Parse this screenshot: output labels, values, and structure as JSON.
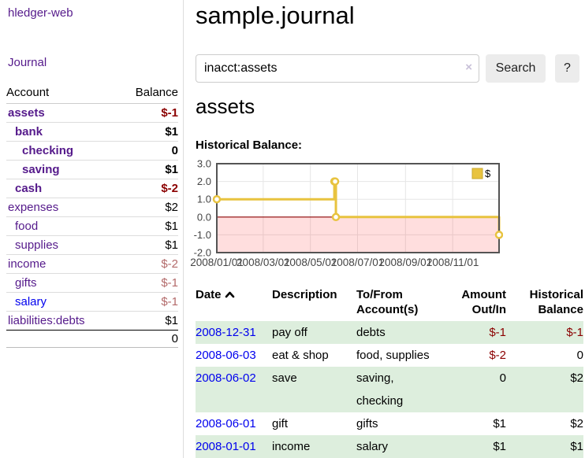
{
  "colors": {
    "link_visited": "#551a8b",
    "link": "#0000ee",
    "negative": "#8b0000",
    "negative_soft": "#b36a6a",
    "highlight_row": "#ddeedd",
    "series_accent": "#e8c33f",
    "series_marker_border": "#c9a82f",
    "zero_line": "#8b0000",
    "negative_region": "rgba(255,0,0,0.13)",
    "grid_line": "#e6e6e6",
    "plot_border": "#545454",
    "axis_text": "#444444",
    "button_bg": "#ececec"
  },
  "app": {
    "title": "hledger-web",
    "nav_journal": "Journal"
  },
  "sidebar": {
    "header": {
      "account": "Account",
      "balance": "Balance"
    },
    "accounts": [
      {
        "name": "assets",
        "depth": 1,
        "bold": true,
        "balance": "$-1",
        "negative": true,
        "link_color": "purple"
      },
      {
        "name": "bank",
        "depth": 2,
        "bold": true,
        "balance": "$1",
        "negative": false,
        "link_color": "purple"
      },
      {
        "name": "checking",
        "depth": 3,
        "bold": true,
        "balance": "0",
        "negative": false,
        "link_color": "purple"
      },
      {
        "name": "saving",
        "depth": 3,
        "bold": true,
        "balance": "$1",
        "negative": false,
        "link_color": "purple"
      },
      {
        "name": "cash",
        "depth": 2,
        "bold": true,
        "balance": "$-2",
        "negative": true,
        "link_color": "purple"
      },
      {
        "name": "expenses",
        "depth": 1,
        "bold": false,
        "balance": "$2",
        "negative": false,
        "link_color": "purple"
      },
      {
        "name": "food",
        "depth": 2,
        "bold": false,
        "balance": "$1",
        "negative": false,
        "link_color": "purple"
      },
      {
        "name": "supplies",
        "depth": 2,
        "bold": false,
        "balance": "$1",
        "negative": false,
        "link_color": "purple"
      },
      {
        "name": "income",
        "depth": 1,
        "bold": false,
        "balance": "$-2",
        "negative": true,
        "link_color": "purple"
      },
      {
        "name": "gifts",
        "depth": 2,
        "bold": false,
        "balance": "$-1",
        "negative": true,
        "link_color": "purple"
      },
      {
        "name": "salary",
        "depth": 2,
        "bold": false,
        "balance": "$-1",
        "negative": true,
        "link_color": "blue"
      },
      {
        "name": "liabilities:debts",
        "depth": 1,
        "bold": false,
        "balance": "$1",
        "negative": false,
        "link_color": "purple"
      }
    ],
    "total": "0"
  },
  "header": {
    "title": "sample.journal"
  },
  "search": {
    "value": "inacct:assets",
    "clear_label": "×",
    "button_label": "Search",
    "help_label": "?"
  },
  "account_page": {
    "heading": "assets",
    "chart_label": "Historical Balance:"
  },
  "chart_data": {
    "type": "line",
    "steps": true,
    "title": "Historical Balance",
    "ylim": [
      -2,
      3
    ],
    "yticks": [
      "3.0",
      "2.0",
      "1.0",
      "0.0",
      "-1.0",
      "-2.0"
    ],
    "xticks": [
      "2008/01/01",
      "2008/03/01",
      "2008/05/01",
      "2008/07/01",
      "2008/09/01",
      "2008/11/01"
    ],
    "xrange": [
      "2008-01-01",
      "2008-12-31"
    ],
    "legend": {
      "label": "$",
      "position": "top-right"
    },
    "series": [
      {
        "name": "$",
        "points": [
          [
            "2008-01-01",
            1
          ],
          [
            "2008-06-01",
            2
          ],
          [
            "2008-06-02",
            2
          ],
          [
            "2008-06-03",
            0
          ],
          [
            "2008-12-31",
            -1
          ]
        ]
      }
    ]
  },
  "register": {
    "columns": [
      {
        "lines": [
          "Date"
        ],
        "align": "left",
        "sorted_asc": true
      },
      {
        "lines": [
          "Description"
        ],
        "align": "left"
      },
      {
        "lines": [
          "To/From",
          "Account(s)"
        ],
        "align": "left"
      },
      {
        "lines": [
          "Amount",
          "Out/In"
        ],
        "align": "right"
      },
      {
        "lines": [
          "Historical",
          "Balance"
        ],
        "align": "right"
      }
    ],
    "rows": [
      {
        "date": "2008-12-31",
        "description": "pay off",
        "accounts": [
          "debts"
        ],
        "amount": "$-1",
        "amount_negative": true,
        "balance": "$-1",
        "balance_negative": true,
        "highlighted": true
      },
      {
        "date": "2008-06-03",
        "description": "eat & shop",
        "accounts": [
          "food, supplies"
        ],
        "amount": "$-2",
        "amount_negative": true,
        "balance": "0",
        "balance_negative": false,
        "highlighted": false
      },
      {
        "date": "2008-06-02",
        "description": "save",
        "accounts": [
          "saving,",
          "checking"
        ],
        "amount": "0",
        "amount_negative": false,
        "balance": "$2",
        "balance_negative": false,
        "highlighted": true
      },
      {
        "date": "2008-06-01",
        "description": "gift",
        "accounts": [
          "gifts"
        ],
        "amount": "$1",
        "amount_negative": false,
        "balance": "$2",
        "balance_negative": false,
        "highlighted": false
      },
      {
        "date": "2008-01-01",
        "description": "income",
        "accounts": [
          "salary"
        ],
        "amount": "$1",
        "amount_negative": false,
        "balance": "$1",
        "balance_negative": false,
        "highlighted": true
      }
    ]
  }
}
